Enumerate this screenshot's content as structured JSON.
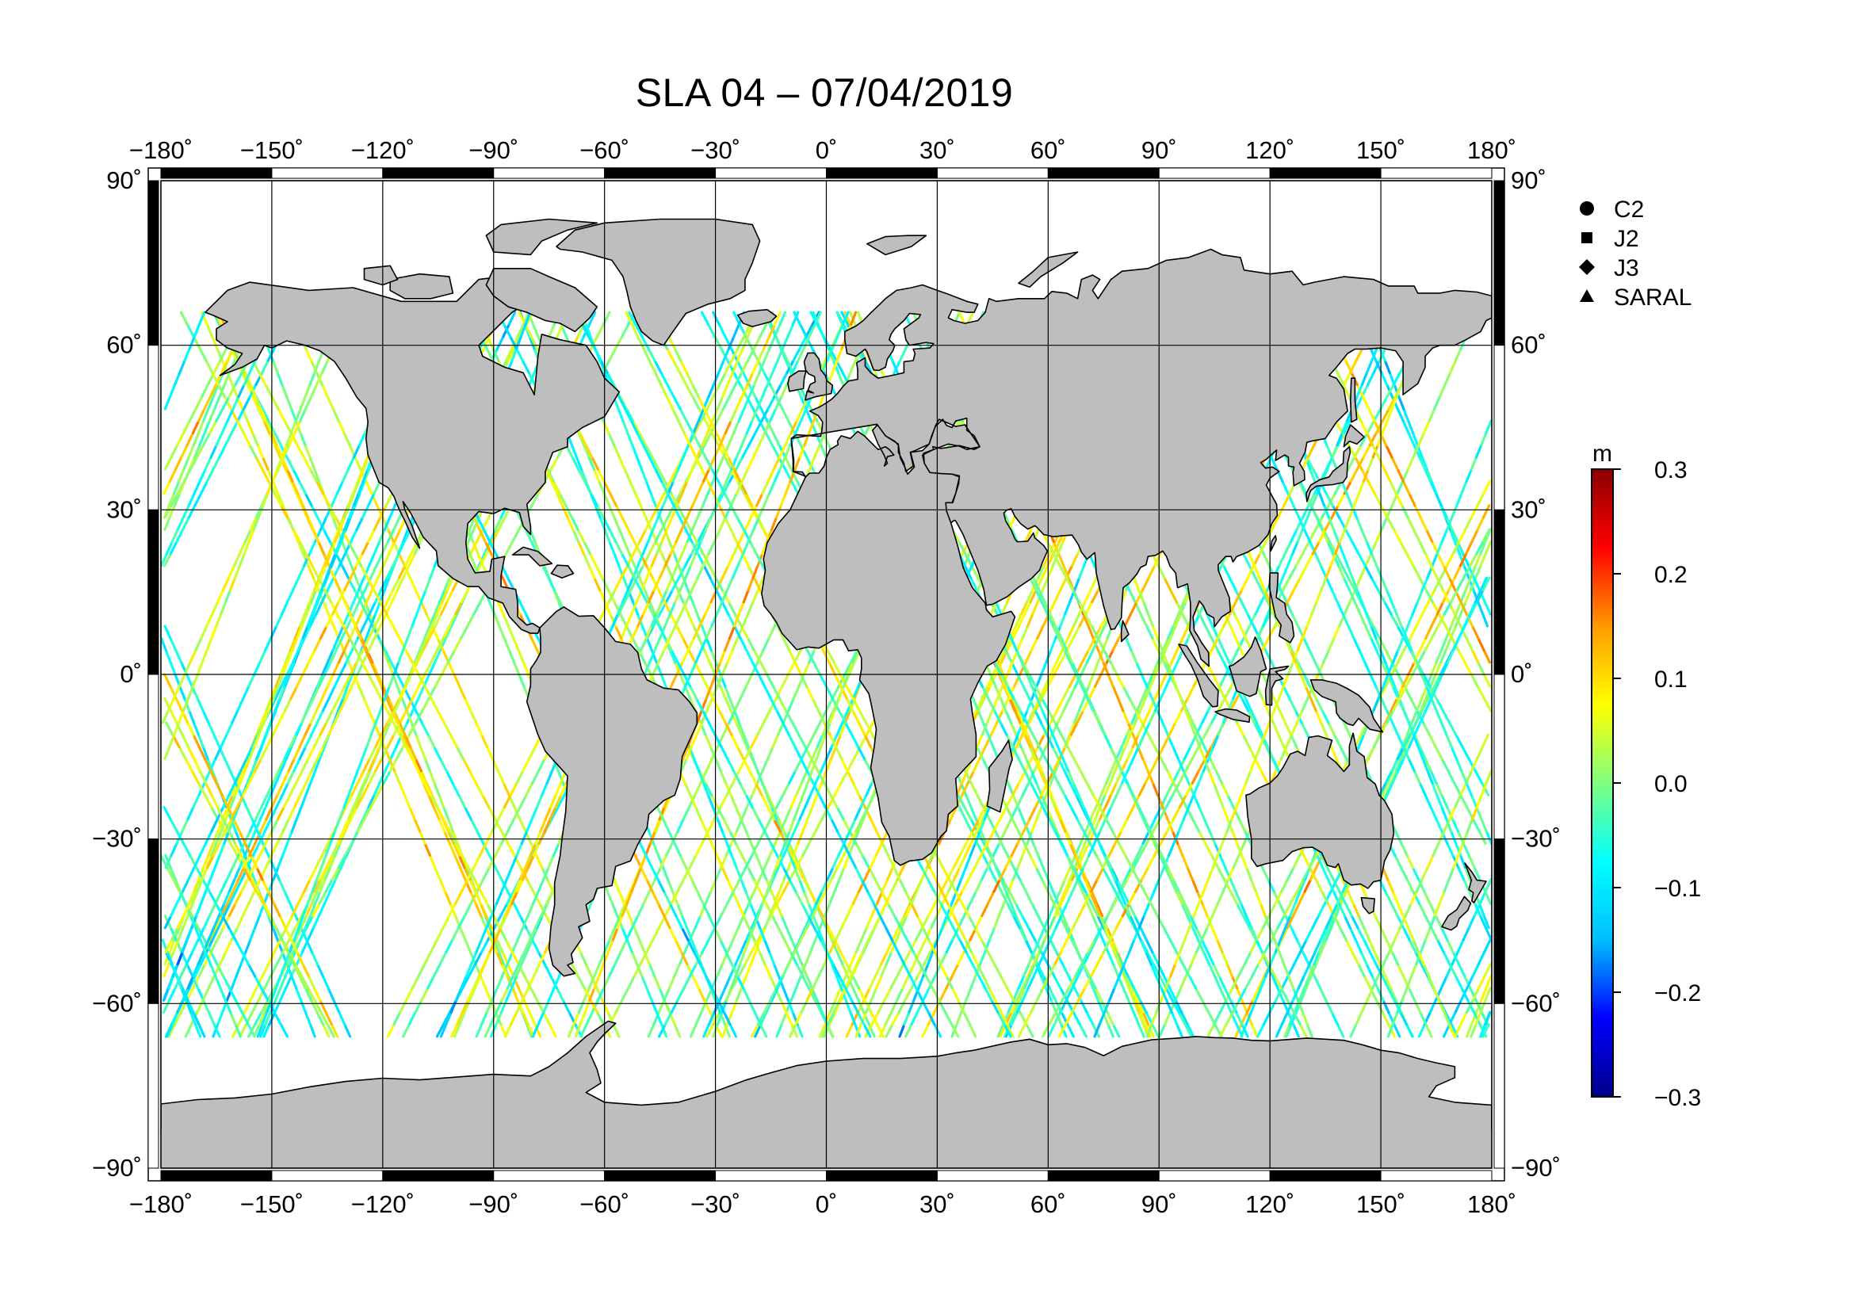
{
  "title": "SLA 04 – 07/04/2019",
  "map": {
    "projection": "equirectangular",
    "lon_range": [
      -180,
      180
    ],
    "lat_range": [
      -90,
      90
    ],
    "land_color": "#bebebe",
    "coastline_color": "#000000",
    "lon_ticks": [
      {
        "value": -180,
        "label": "−180˚"
      },
      {
        "value": -150,
        "label": "−150˚"
      },
      {
        "value": -120,
        "label": "−120˚"
      },
      {
        "value": -90,
        "label": "−90˚"
      },
      {
        "value": -60,
        "label": "−60˚"
      },
      {
        "value": -30,
        "label": "−30˚"
      },
      {
        "value": 0,
        "label": "0˚"
      },
      {
        "value": 30,
        "label": "30˚"
      },
      {
        "value": 60,
        "label": "60˚"
      },
      {
        "value": 90,
        "label": "90˚"
      },
      {
        "value": 120,
        "label": "120˚"
      },
      {
        "value": 150,
        "label": "150˚"
      },
      {
        "value": 180,
        "label": "180˚"
      }
    ],
    "lat_ticks": [
      {
        "value": 90,
        "label": "90˚"
      },
      {
        "value": 60,
        "label": "60˚"
      },
      {
        "value": 30,
        "label": "30˚"
      },
      {
        "value": 0,
        "label": "0˚"
      },
      {
        "value": -30,
        "label": "−30˚"
      },
      {
        "value": -60,
        "label": "−60˚"
      },
      {
        "value": -90,
        "label": "−90˚"
      }
    ],
    "sla_range_m": [
      -0.3,
      0.3
    ]
  },
  "legend": {
    "items": [
      {
        "symbol": "circle",
        "label": "C2"
      },
      {
        "symbol": "square",
        "label": "J2"
      },
      {
        "symbol": "diamond",
        "label": "J3"
      },
      {
        "symbol": "triangle",
        "label": "SARAL"
      }
    ]
  },
  "colorbar": {
    "unit": "m",
    "min": -0.3,
    "max": 0.3,
    "ticks": [
      {
        "value": 0.3,
        "label": "0.3"
      },
      {
        "value": 0.2,
        "label": "0.2"
      },
      {
        "value": 0.1,
        "label": "0.1"
      },
      {
        "value": 0.0,
        "label": "0.0"
      },
      {
        "value": -0.1,
        "label": "−0.1"
      },
      {
        "value": -0.2,
        "label": "−0.2"
      },
      {
        "value": -0.3,
        "label": "−0.3"
      }
    ],
    "colormap": [
      "#00008b",
      "#0000ff",
      "#00bfff",
      "#00ffff",
      "#7fff7f",
      "#ffff00",
      "#ff9900",
      "#ff0000",
      "#8b0000"
    ]
  }
}
